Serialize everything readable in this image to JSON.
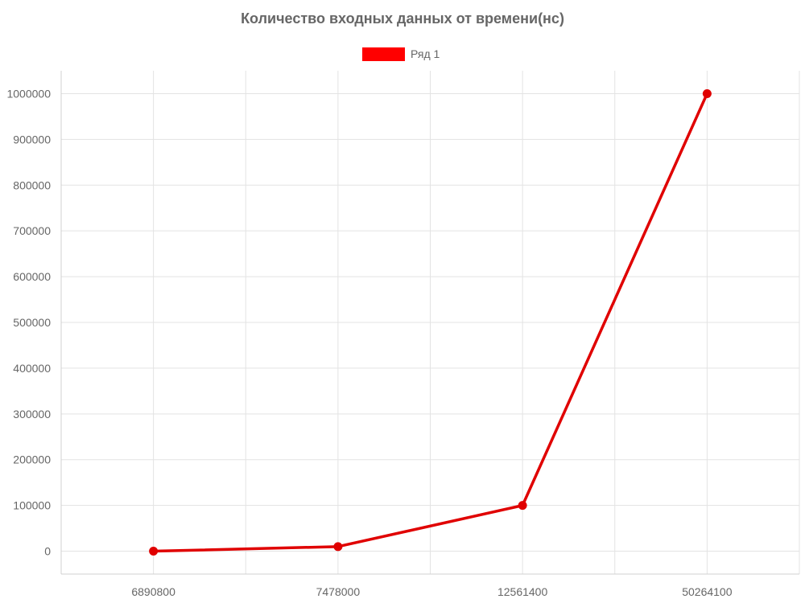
{
  "chart_data": {
    "type": "line",
    "title": "Количество входных данных от времени(нс)",
    "categories": [
      "6890800",
      "7478000",
      "12561400",
      "50264100"
    ],
    "series": [
      {
        "name": "Ряд 1",
        "values": [
          0,
          10000,
          100000,
          1000000
        ],
        "color": "#e00000"
      }
    ],
    "ylim": [
      -50000,
      1050000
    ],
    "yticks": [
      0,
      100000,
      200000,
      300000,
      400000,
      500000,
      600000,
      700000,
      800000,
      900000,
      1000000
    ],
    "grid": true,
    "legend": "top-center",
    "legend_swatch_color": "#ff0000"
  }
}
